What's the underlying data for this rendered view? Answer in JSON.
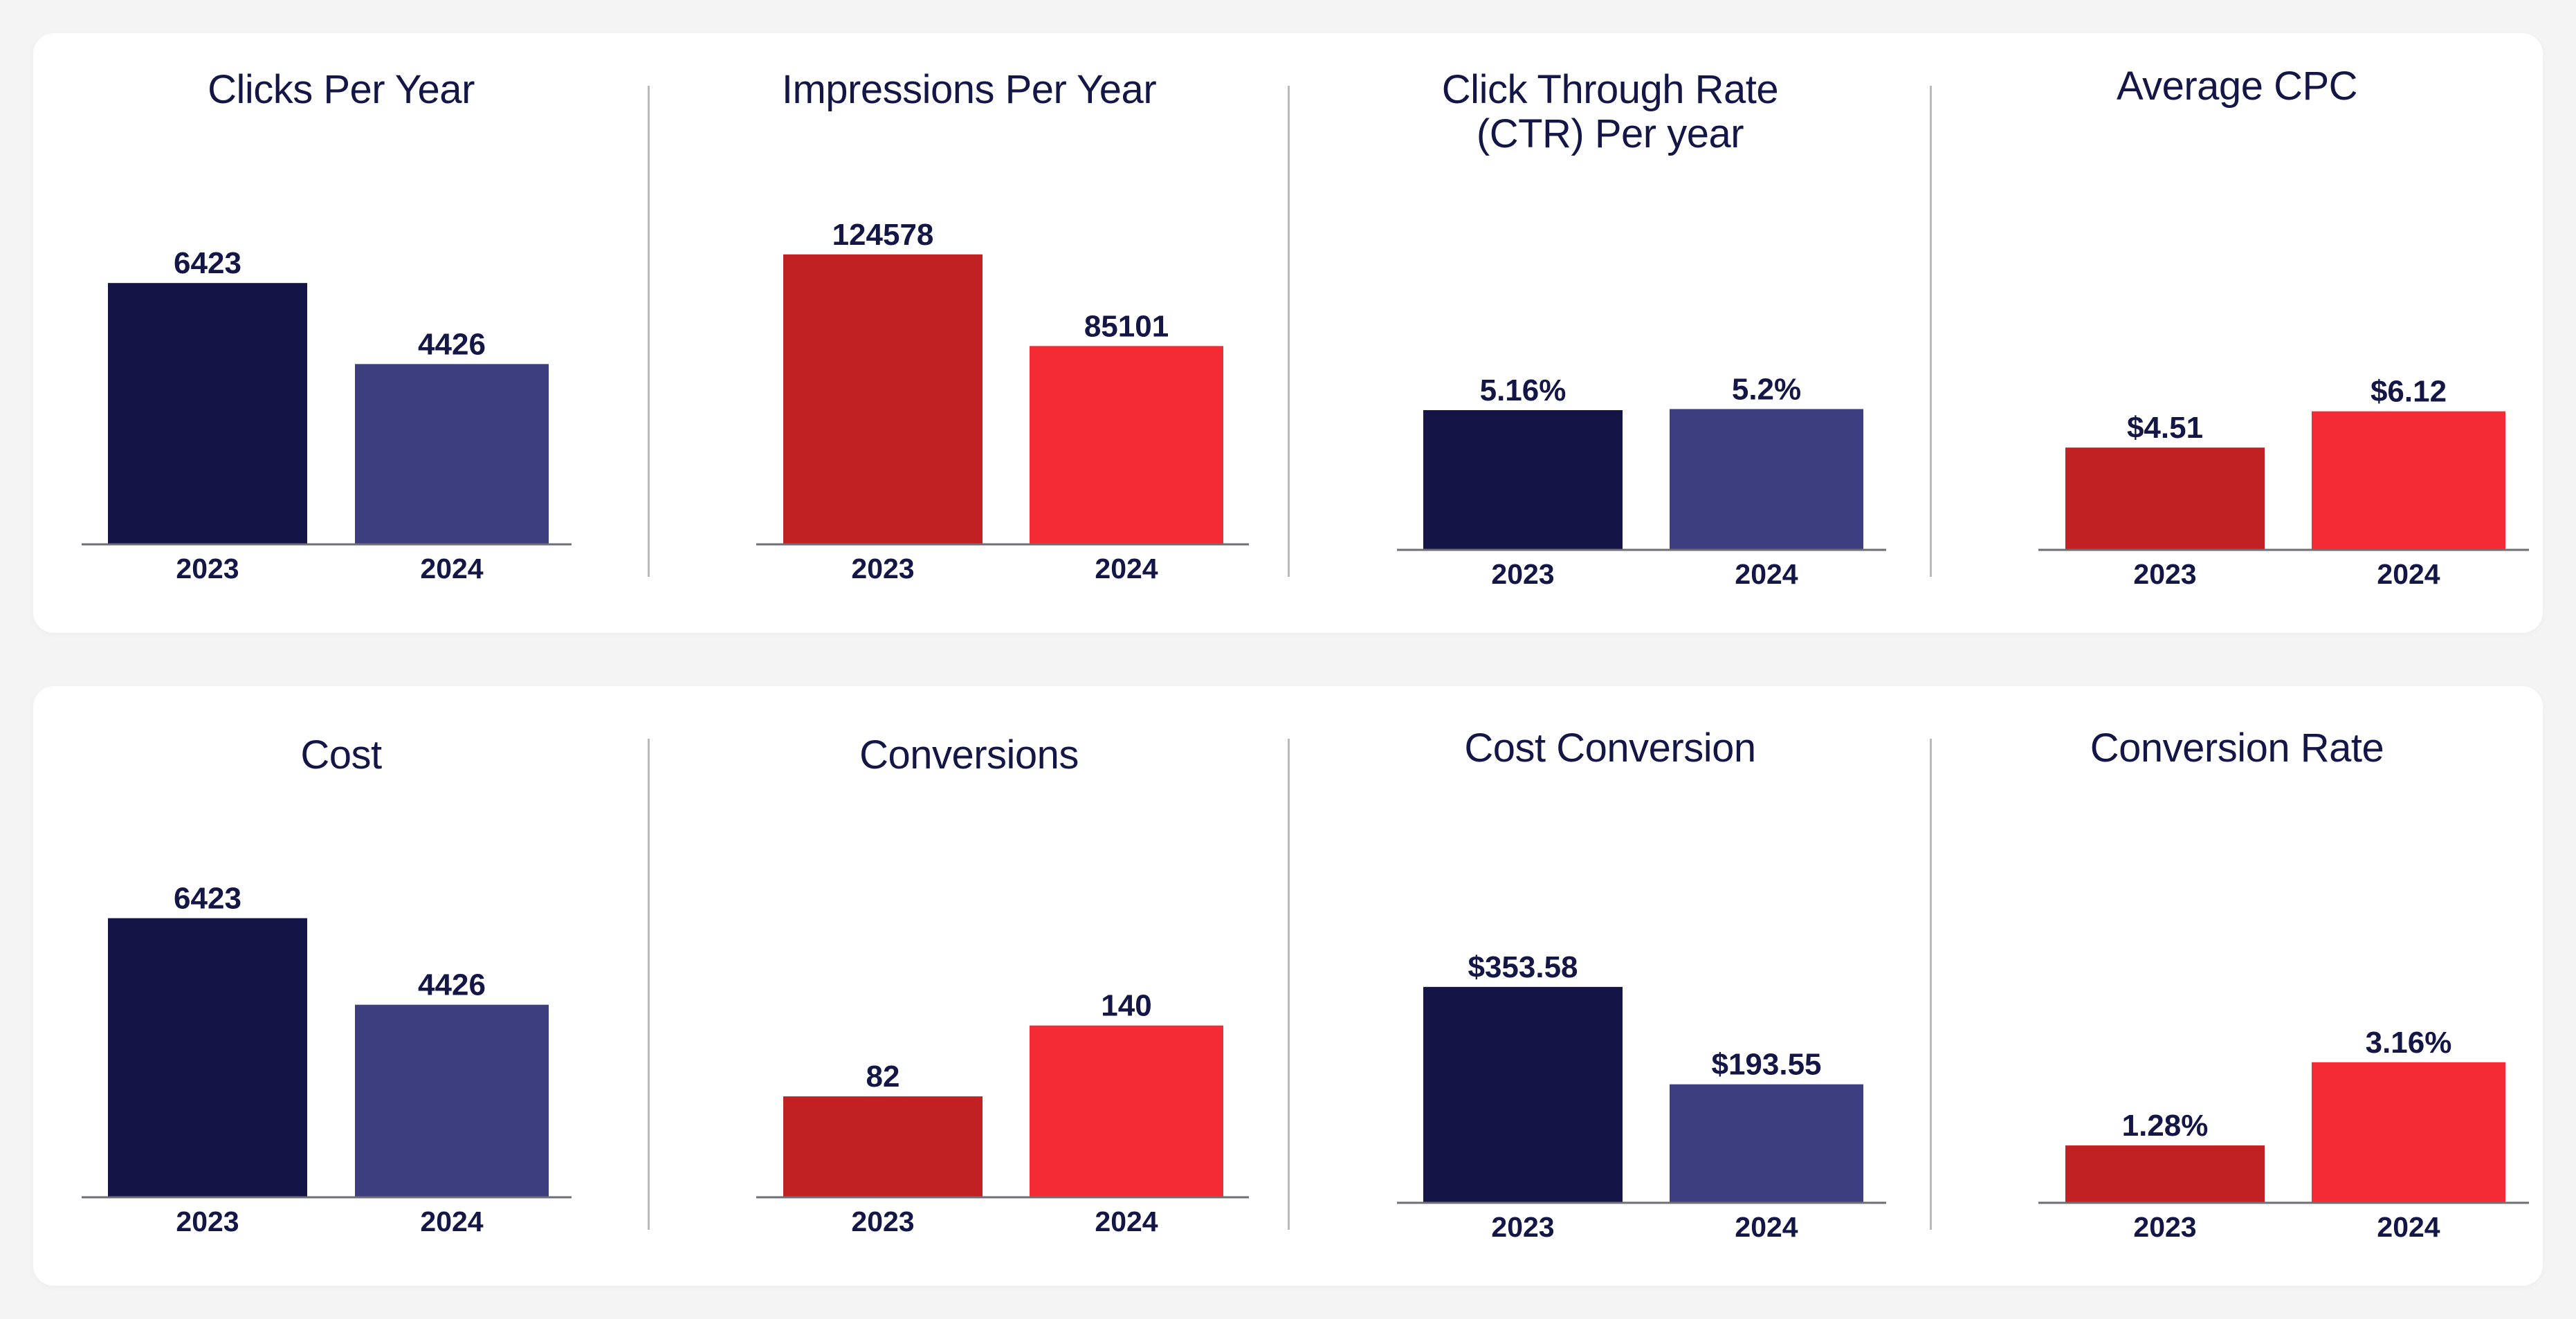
{
  "colors": {
    "navy_dark": "#141446",
    "navy_light": "#3d3e80",
    "red_dark": "#c22123",
    "red_light": "#f42b35",
    "text": "#141646"
  },
  "chart_data": [
    {
      "type": "bar",
      "title": "Clicks Per Year",
      "categories": [
        "2023",
        "2024"
      ],
      "values": [
        6423,
        4426
      ],
      "labels": [
        "6423",
        "4426"
      ],
      "colors": [
        "#141446",
        "#3d3e80"
      ],
      "ylim": [
        0,
        7500
      ]
    },
    {
      "type": "bar",
      "title": "Impressions Per Year",
      "categories": [
        "2023",
        "2024"
      ],
      "values": [
        124578,
        85101
      ],
      "labels": [
        "124578",
        "85101"
      ],
      "colors": [
        "#c22123",
        "#f42b35"
      ],
      "ylim": [
        0,
        140000
      ]
    },
    {
      "type": "bar",
      "title": "Click Through Rate\n(CTR) Per year",
      "categories": [
        "2023",
        "2024"
      ],
      "values": [
        5.16,
        5.2
      ],
      "labels": [
        "5.16%",
        "5.2%"
      ],
      "colors": [
        "#141446",
        "#3d3e80"
      ],
      "ylim": [
        0,
        12.5
      ]
    },
    {
      "type": "bar",
      "title": "Average CPC",
      "categories": [
        "2023",
        "2024"
      ],
      "values": [
        4.51,
        6.12
      ],
      "labels": [
        "$4.51",
        "$6.12"
      ],
      "colors": [
        "#c22123",
        "#f42b35"
      ],
      "ylim": [
        0,
        14
      ]
    },
    {
      "type": "bar",
      "title": "Cost",
      "categories": [
        "2023",
        "2024"
      ],
      "values": [
        6423,
        4426
      ],
      "labels": [
        "6423",
        "4426"
      ],
      "colors": [
        "#141446",
        "#3d3e80"
      ],
      "ylim": [
        0,
        7500
      ]
    },
    {
      "type": "bar",
      "title": "Conversions",
      "categories": [
        "2023",
        "2024"
      ],
      "values": [
        82,
        140
      ],
      "labels": [
        "82",
        "140"
      ],
      "colors": [
        "#c22123",
        "#f42b35"
      ],
      "ylim": [
        0,
        300
      ]
    },
    {
      "type": "bar",
      "title": "Cost Conversion",
      "categories": [
        "2023",
        "2024"
      ],
      "values": [
        353.58,
        193.55
      ],
      "labels": [
        "$353.58",
        "$193.55"
      ],
      "colors": [
        "#141446",
        "#3d3e80"
      ],
      "ylim": [
        0,
        500
      ]
    },
    {
      "type": "bar",
      "title": "Conversion Rate",
      "categories": [
        "2023",
        "2024"
      ],
      "values": [
        1.28,
        3.16
      ],
      "labels": [
        "1.28%",
        "3.16%"
      ],
      "colors": [
        "#c22123",
        "#f42b35"
      ],
      "ylim": [
        0,
        8
      ]
    }
  ]
}
